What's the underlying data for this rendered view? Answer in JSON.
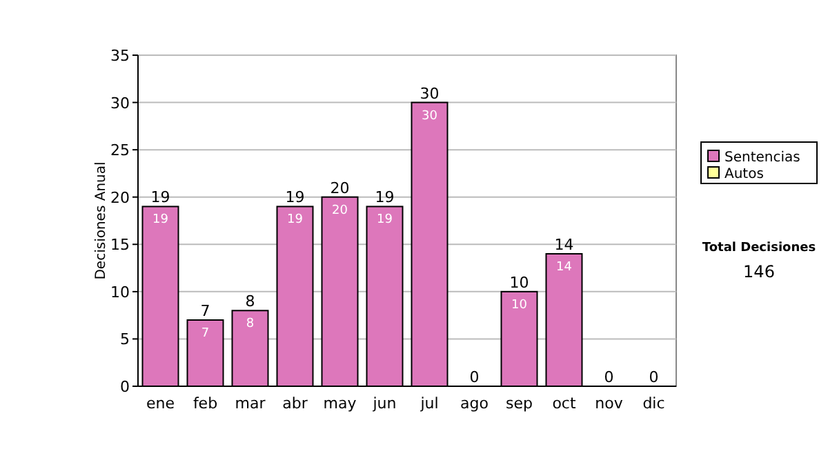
{
  "chart_data": {
    "type": "bar",
    "ylabel": "Decisiones Anual",
    "categories": [
      "ene",
      "feb",
      "mar",
      "abr",
      "may",
      "jun",
      "jul",
      "ago",
      "sep",
      "oct",
      "nov",
      "dic"
    ],
    "stacked": true,
    "series": [
      {
        "name": "Sentencias",
        "color": "#dd77bb",
        "values": [
          19,
          7,
          8,
          19,
          20,
          19,
          30,
          0,
          10,
          14,
          0,
          0
        ],
        "value_labels": [
          "19",
          "7",
          "8",
          "19",
          "20",
          "19",
          "30",
          null,
          "10",
          "14",
          null,
          null
        ]
      },
      {
        "name": "Autos",
        "color": "#ffff99",
        "values": [
          0,
          0,
          0,
          0,
          0,
          0,
          0,
          0,
          0,
          0,
          0,
          0
        ]
      }
    ],
    "totals": [
      "19",
      "7",
      "8",
      "19",
      "20",
      "19",
      "30",
      "0",
      "10",
      "14",
      "0",
      "0"
    ],
    "ylim": [
      0,
      35
    ],
    "yticks": [
      0,
      5,
      10,
      15,
      20,
      25,
      30,
      35
    ],
    "grid": "y",
    "legend": "right",
    "annotations": [
      "Total Decisiones",
      "146"
    ]
  }
}
